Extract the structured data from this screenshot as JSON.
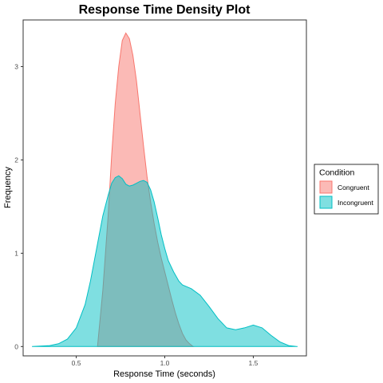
{
  "chart_data": {
    "type": "area",
    "title": "Response Time Density Plot",
    "xlabel": "Response Time (seconds)",
    "ylabel": "Frequency",
    "xlim": [
      0.2,
      1.8
    ],
    "ylim": [
      -0.1,
      3.5
    ],
    "x_ticks": [
      0.5,
      1.0,
      1.5
    ],
    "x_tick_labels": [
      "0.5",
      "1.0",
      "1.5"
    ],
    "y_ticks": [
      0,
      1,
      2,
      3
    ],
    "y_tick_labels": [
      "0",
      "1",
      "2",
      "3"
    ],
    "grid": false,
    "legend": {
      "title": "Condition",
      "position": "right",
      "entries": [
        "Congruent",
        "Incongruent"
      ]
    },
    "series": [
      {
        "name": "Congruent",
        "color": "#F8766D",
        "fill_opacity": 0.5,
        "x": [
          0.62,
          0.65,
          0.68,
          0.7,
          0.72,
          0.74,
          0.76,
          0.78,
          0.8,
          0.82,
          0.84,
          0.86,
          0.88,
          0.9,
          0.92,
          0.94,
          0.96,
          0.98,
          1.0,
          1.02,
          1.04,
          1.06,
          1.08,
          1.1,
          1.12,
          1.14,
          1.16
        ],
        "y": [
          0.0,
          0.6,
          1.4,
          2.05,
          2.6,
          3.0,
          3.28,
          3.36,
          3.3,
          3.12,
          2.85,
          2.5,
          2.15,
          1.82,
          1.55,
          1.32,
          1.12,
          0.95,
          0.8,
          0.65,
          0.5,
          0.36,
          0.24,
          0.14,
          0.07,
          0.03,
          0.0
        ]
      },
      {
        "name": "Incongruent",
        "color": "#00BFC4",
        "fill_opacity": 0.5,
        "x": [
          0.25,
          0.35,
          0.4,
          0.45,
          0.5,
          0.55,
          0.58,
          0.6,
          0.62,
          0.65,
          0.68,
          0.7,
          0.72,
          0.74,
          0.76,
          0.78,
          0.8,
          0.82,
          0.84,
          0.86,
          0.88,
          0.9,
          0.92,
          0.94,
          0.96,
          0.98,
          1.0,
          1.02,
          1.05,
          1.08,
          1.1,
          1.15,
          1.2,
          1.25,
          1.3,
          1.35,
          1.4,
          1.45,
          1.5,
          1.55,
          1.6,
          1.65,
          1.7,
          1.75
        ],
        "y": [
          0.0,
          0.01,
          0.03,
          0.08,
          0.2,
          0.45,
          0.7,
          0.9,
          1.1,
          1.4,
          1.62,
          1.75,
          1.81,
          1.83,
          1.8,
          1.74,
          1.72,
          1.73,
          1.75,
          1.77,
          1.78,
          1.76,
          1.68,
          1.55,
          1.38,
          1.2,
          1.05,
          0.92,
          0.8,
          0.7,
          0.66,
          0.62,
          0.55,
          0.43,
          0.3,
          0.2,
          0.18,
          0.2,
          0.23,
          0.2,
          0.12,
          0.05,
          0.01,
          0.0
        ]
      }
    ]
  }
}
